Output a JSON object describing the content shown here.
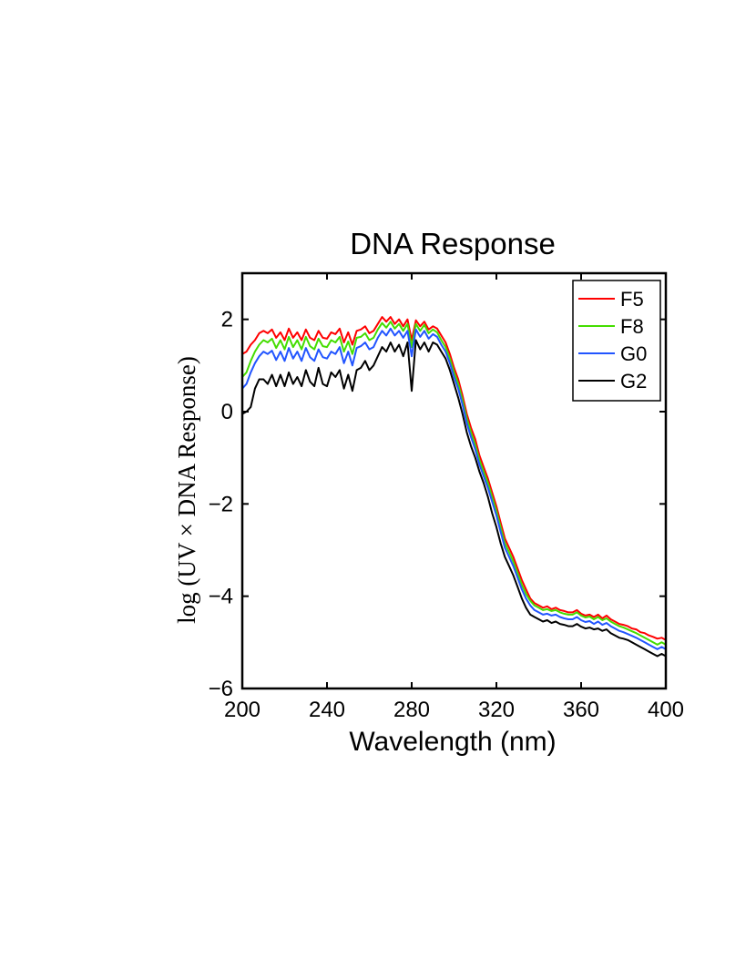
{
  "chart_data": {
    "type": "line",
    "title": "DNA Response",
    "xlabel": "Wavelength (nm)",
    "ylabel": "log (UV × DNA Response)",
    "xlim": [
      200,
      400
    ],
    "ylim": [
      -6,
      3
    ],
    "xticks": [
      200,
      240,
      280,
      320,
      360,
      400
    ],
    "yticks": [
      -6,
      -4,
      -2,
      0,
      2
    ],
    "xtick_labels": [
      "200",
      "240",
      "280",
      "320",
      "360",
      "400"
    ],
    "ytick_labels": [
      "−6",
      "−4",
      "−2",
      "0",
      "2"
    ],
    "grid": false,
    "legend": "top-right",
    "x": [
      200,
      202,
      204,
      206,
      208,
      210,
      212,
      214,
      216,
      218,
      220,
      222,
      224,
      226,
      228,
      230,
      232,
      234,
      236,
      238,
      240,
      242,
      244,
      246,
      248,
      250,
      252,
      254,
      256,
      258,
      260,
      262,
      264,
      266,
      268,
      270,
      272,
      274,
      276,
      278,
      280,
      282,
      284,
      286,
      288,
      290,
      292,
      294,
      296,
      298,
      300,
      302,
      304,
      306,
      308,
      310,
      312,
      314,
      316,
      318,
      320,
      322,
      324,
      326,
      328,
      330,
      332,
      334,
      336,
      338,
      340,
      342,
      344,
      346,
      348,
      350,
      352,
      354,
      356,
      358,
      360,
      362,
      364,
      366,
      368,
      370,
      372,
      374,
      376,
      378,
      380,
      382,
      384,
      386,
      388,
      390,
      392,
      394,
      396,
      398,
      400
    ],
    "series": [
      {
        "name": "F5",
        "color": "#ff0000",
        "values": [
          1.25,
          1.3,
          1.45,
          1.55,
          1.7,
          1.75,
          1.7,
          1.78,
          1.6,
          1.72,
          1.55,
          1.8,
          1.6,
          1.72,
          1.55,
          1.78,
          1.6,
          1.55,
          1.75,
          1.6,
          1.58,
          1.72,
          1.68,
          1.8,
          1.5,
          1.72,
          1.45,
          1.75,
          1.78,
          1.85,
          1.7,
          1.75,
          1.9,
          2.05,
          1.95,
          2.05,
          1.9,
          2.0,
          1.85,
          2.0,
          1.55,
          1.98,
          1.85,
          1.95,
          1.78,
          1.85,
          1.8,
          1.65,
          1.5,
          1.25,
          0.95,
          0.7,
          0.35,
          -0.05,
          -0.35,
          -0.6,
          -0.95,
          -1.2,
          -1.45,
          -1.75,
          -2.05,
          -2.4,
          -2.75,
          -2.95,
          -3.15,
          -3.4,
          -3.65,
          -3.85,
          -4.05,
          -4.15,
          -4.2,
          -4.25,
          -4.22,
          -4.28,
          -4.25,
          -4.3,
          -4.32,
          -4.35,
          -4.35,
          -4.3,
          -4.38,
          -4.42,
          -4.4,
          -4.45,
          -4.4,
          -4.48,
          -4.42,
          -4.5,
          -4.55,
          -4.6,
          -4.62,
          -4.65,
          -4.7,
          -4.72,
          -4.78,
          -4.8,
          -4.85,
          -4.88,
          -4.92,
          -4.9,
          -4.95
        ]
      },
      {
        "name": "F8",
        "color": "#44dd00",
        "values": [
          0.75,
          0.85,
          1.1,
          1.3,
          1.45,
          1.55,
          1.5,
          1.58,
          1.38,
          1.55,
          1.35,
          1.62,
          1.4,
          1.55,
          1.35,
          1.62,
          1.42,
          1.35,
          1.58,
          1.42,
          1.4,
          1.55,
          1.5,
          1.62,
          1.3,
          1.52,
          1.25,
          1.6,
          1.62,
          1.7,
          1.55,
          1.6,
          1.78,
          1.92,
          1.82,
          1.95,
          1.8,
          1.9,
          1.75,
          1.9,
          1.4,
          1.9,
          1.75,
          1.88,
          1.7,
          1.78,
          1.72,
          1.55,
          1.4,
          1.15,
          0.85,
          0.6,
          0.25,
          -0.15,
          -0.45,
          -0.72,
          -1.05,
          -1.3,
          -1.55,
          -1.85,
          -2.15,
          -2.5,
          -2.85,
          -3.05,
          -3.25,
          -3.5,
          -3.75,
          -3.95,
          -4.1,
          -4.2,
          -4.25,
          -4.3,
          -4.28,
          -4.32,
          -4.3,
          -4.35,
          -4.38,
          -4.4,
          -4.4,
          -4.35,
          -4.42,
          -4.46,
          -4.44,
          -4.5,
          -4.45,
          -4.52,
          -4.48,
          -4.55,
          -4.6,
          -4.65,
          -4.68,
          -4.72,
          -4.76,
          -4.8,
          -4.85,
          -4.9,
          -4.95,
          -5.0,
          -5.05,
          -5.0,
          -5.05
        ]
      },
      {
        "name": "G0",
        "color": "#2255ff",
        "values": [
          0.5,
          0.6,
          0.85,
          1.05,
          1.2,
          1.3,
          1.25,
          1.32,
          1.12,
          1.3,
          1.1,
          1.38,
          1.15,
          1.3,
          1.1,
          1.38,
          1.18,
          1.1,
          1.35,
          1.18,
          1.15,
          1.3,
          1.25,
          1.4,
          1.05,
          1.3,
          1.0,
          1.38,
          1.42,
          1.5,
          1.35,
          1.4,
          1.6,
          1.75,
          1.65,
          1.8,
          1.65,
          1.75,
          1.6,
          1.75,
          1.2,
          1.78,
          1.62,
          1.75,
          1.58,
          1.68,
          1.62,
          1.45,
          1.3,
          1.05,
          0.75,
          0.5,
          0.15,
          -0.25,
          -0.55,
          -0.82,
          -1.15,
          -1.4,
          -1.65,
          -1.95,
          -2.25,
          -2.6,
          -2.95,
          -3.15,
          -3.35,
          -3.6,
          -3.85,
          -4.05,
          -4.2,
          -4.3,
          -4.35,
          -4.4,
          -4.38,
          -4.42,
          -4.4,
          -4.45,
          -4.48,
          -4.5,
          -4.5,
          -4.45,
          -4.52,
          -4.56,
          -4.54,
          -4.6,
          -4.55,
          -4.62,
          -4.58,
          -4.65,
          -4.7,
          -4.75,
          -4.78,
          -4.82,
          -4.86,
          -4.9,
          -4.95,
          -5.0,
          -5.05,
          -5.1,
          -5.15,
          -5.1,
          -5.15
        ]
      },
      {
        "name": "G2",
        "color": "#000000",
        "values": [
          -0.05,
          0.0,
          0.1,
          0.5,
          0.7,
          0.7,
          0.6,
          0.8,
          0.55,
          0.8,
          0.55,
          0.85,
          0.6,
          0.75,
          0.55,
          0.9,
          0.65,
          0.55,
          0.95,
          0.6,
          0.55,
          0.85,
          0.75,
          0.9,
          0.5,
          0.8,
          0.45,
          0.9,
          0.95,
          1.1,
          0.9,
          1.0,
          1.2,
          1.4,
          1.3,
          1.5,
          1.3,
          1.45,
          1.2,
          1.5,
          0.45,
          1.55,
          1.35,
          1.5,
          1.3,
          1.5,
          1.45,
          1.3,
          1.15,
          0.9,
          0.6,
          0.3,
          -0.05,
          -0.45,
          -0.75,
          -1.0,
          -1.3,
          -1.55,
          -1.85,
          -2.2,
          -2.5,
          -2.85,
          -3.15,
          -3.35,
          -3.55,
          -3.8,
          -4.05,
          -4.25,
          -4.4,
          -4.45,
          -4.5,
          -4.55,
          -4.52,
          -4.58,
          -4.55,
          -4.6,
          -4.62,
          -4.65,
          -4.65,
          -4.6,
          -4.66,
          -4.7,
          -4.68,
          -4.72,
          -4.7,
          -4.75,
          -4.72,
          -4.8,
          -4.85,
          -4.9,
          -4.92,
          -4.95,
          -5.0,
          -5.05,
          -5.1,
          -5.15,
          -5.2,
          -5.25,
          -5.3,
          -5.25,
          -5.3
        ]
      }
    ]
  }
}
